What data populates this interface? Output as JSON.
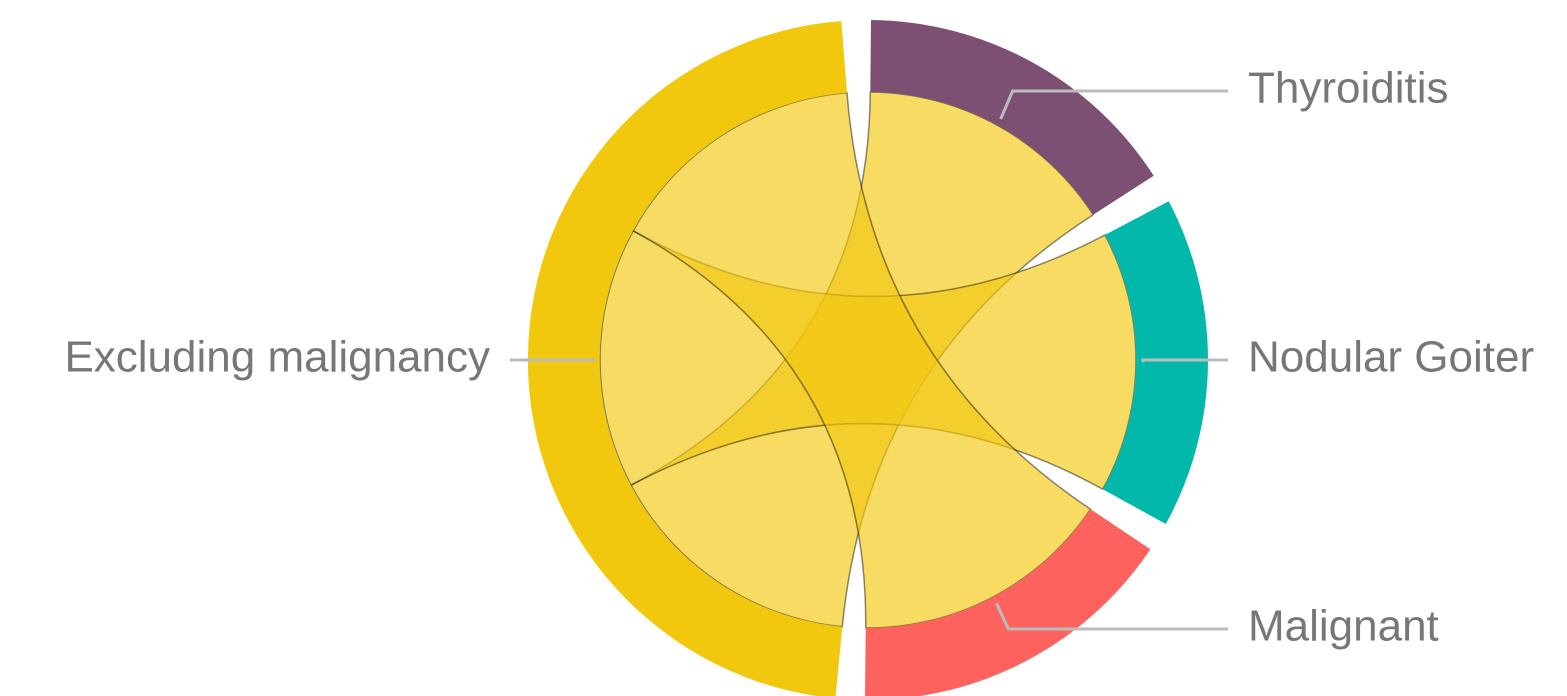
{
  "diagram": {
    "type": "chord",
    "nodes": [
      {
        "label": "Thyroiditis",
        "value": 1,
        "color": "#7d4f73"
      },
      {
        "label": "Nodular Goiter",
        "value": 1,
        "color": "#01b8aa"
      },
      {
        "label": "Malignant",
        "value": 1,
        "color": "#fd625e"
      },
      {
        "label": "Excluding malignancy",
        "value": 3,
        "color": "#f2c80f"
      }
    ],
    "links": [
      {
        "source": "Excluding malignancy",
        "target": "Thyroiditis",
        "value": 1
      },
      {
        "source": "Excluding malignancy",
        "target": "Nodular Goiter",
        "value": 1
      },
      {
        "source": "Excluding malignancy",
        "target": "Malignant",
        "value": 1
      }
    ]
  }
}
